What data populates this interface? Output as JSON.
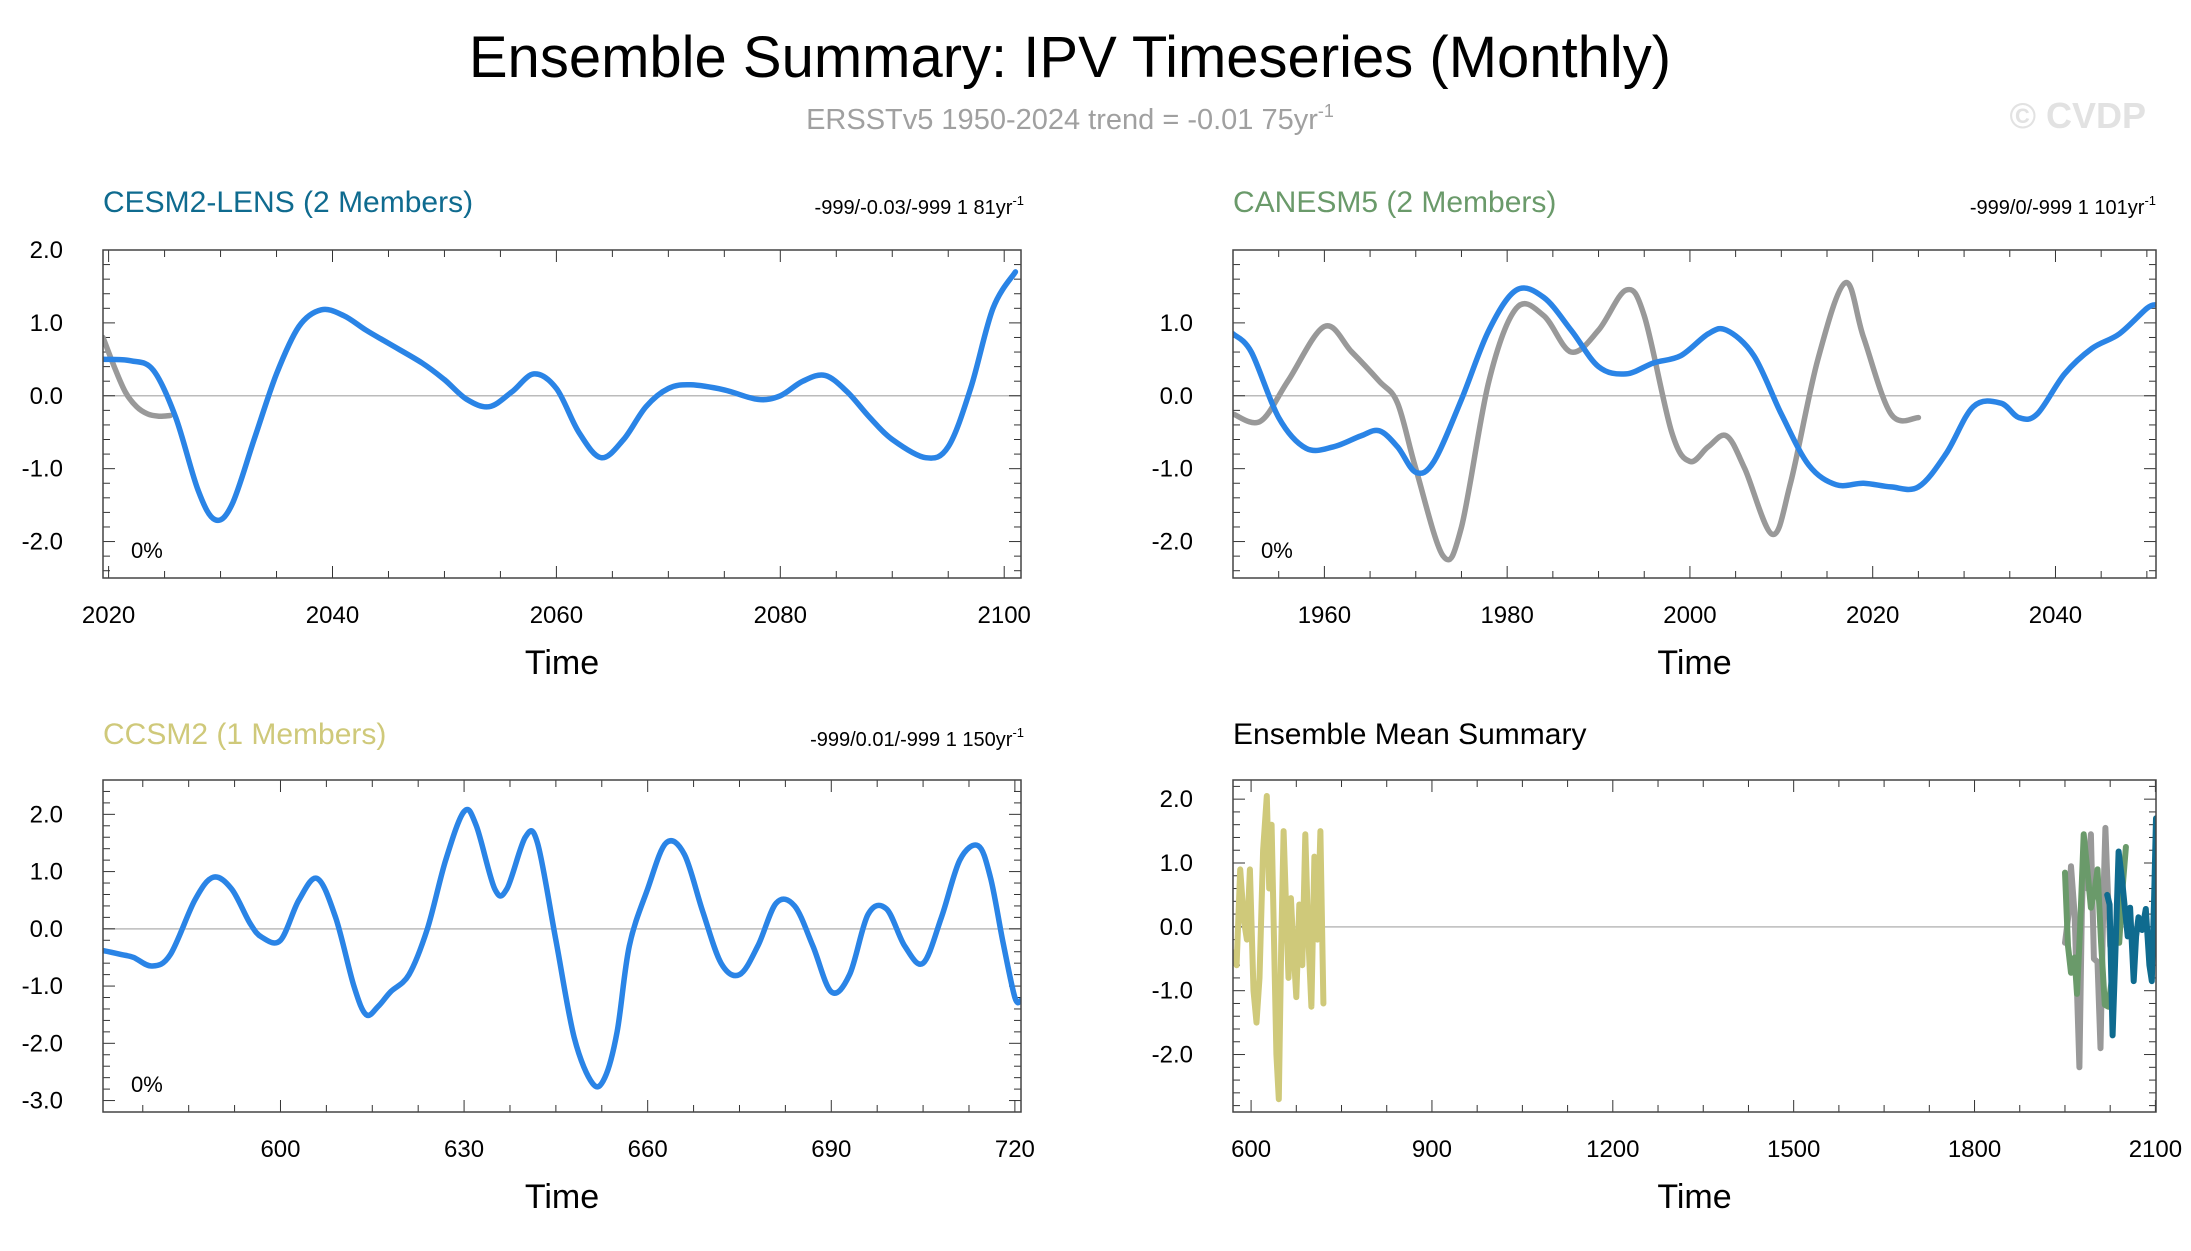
{
  "title": "Ensemble Summary: IPV Timeseries (Monthly)",
  "subtitle": "ERSSTv5 1950-2024 trend = -0.01 75yr",
  "subtitle_sup": "-1",
  "watermark": "© CVDP",
  "colors": {
    "obs": "#999999",
    "model": "#2a84e6",
    "cesm2": "#0f6b8f",
    "canesm5": "#6a9a6a",
    "ccsm2": "#cfc97a",
    "zero": "#bbbbbb"
  },
  "chart_data": [
    {
      "id": "cesm2",
      "type": "line",
      "title": "CESM2-LENS (2 Members)",
      "title_color": "#0f6b8f",
      "stats": "-999/-0.03/-999 1 81yr",
      "stats_sup": "-1",
      "pct_label": "0%",
      "xlabel": "Time",
      "xlim": [
        2019.5,
        2101.5
      ],
      "ylim": [
        -2.5,
        2.0
      ],
      "xticks": [
        2020,
        2040,
        2060,
        2080,
        2100
      ],
      "xtick_labels": [
        "2020",
        "2040",
        "2060",
        "2080",
        "2100"
      ],
      "yticks": [
        2.0,
        1.0,
        0.0,
        -1.0,
        -2.0
      ],
      "ytick_labels": [
        "2.0",
        "1.0",
        "0.0",
        "-1.0",
        "-2.0"
      ],
      "series": [
        {
          "name": "ERSSTv5",
          "role": "obs",
          "x": [
            2019.5,
            2020.5,
            2021.5,
            2022.5,
            2023.5,
            2024.5,
            2025.5
          ],
          "y": [
            0.8,
            0.4,
            0.05,
            -0.15,
            -0.25,
            -0.28,
            -0.27
          ]
        },
        {
          "name": "CESM2-LENS",
          "role": "model",
          "x": [
            2019.5,
            2022,
            2024,
            2026,
            2028,
            2029.5,
            2031,
            2033,
            2035,
            2037,
            2039,
            2041,
            2043,
            2045,
            2048,
            2050,
            2052,
            2054,
            2056,
            2058,
            2060,
            2062,
            2064,
            2066,
            2068,
            2070,
            2072,
            2075,
            2078,
            2080,
            2082,
            2084,
            2086,
            2088,
            2090,
            2093,
            2095,
            2097,
            2099,
            2101
          ],
          "y": [
            0.5,
            0.48,
            0.35,
            -0.3,
            -1.3,
            -1.7,
            -1.5,
            -0.6,
            0.3,
            0.95,
            1.18,
            1.1,
            0.9,
            0.72,
            0.45,
            0.22,
            -0.05,
            -0.15,
            0.05,
            0.3,
            0.1,
            -0.5,
            -0.85,
            -0.6,
            -0.15,
            0.1,
            0.15,
            0.08,
            -0.05,
            0.0,
            0.2,
            0.28,
            0.05,
            -0.3,
            -0.6,
            -0.85,
            -0.7,
            0.1,
            1.2,
            1.7
          ]
        }
      ]
    },
    {
      "id": "canesm5",
      "type": "line",
      "title": "CANESM5 (2 Members)",
      "title_color": "#6a9a6a",
      "stats": "-999/0/-999 1 101yr",
      "stats_sup": "-1",
      "pct_label": "0%",
      "xlabel": "Time",
      "xlim": [
        1950,
        2051
      ],
      "ylim": [
        -2.5,
        2.0
      ],
      "xticks": [
        1960,
        1980,
        2000,
        2020,
        2040
      ],
      "xtick_labels": [
        "1960",
        "1980",
        "2000",
        "2020",
        "2040"
      ],
      "yticks": [
        1.0,
        0.0,
        -1.0,
        -2.0
      ],
      "ytick_labels": [
        "1.0",
        "0.0",
        "-1.0",
        "-2.0"
      ],
      "series": [
        {
          "name": "ERSSTv5",
          "role": "obs",
          "x": [
            1950,
            1953,
            1956,
            1960,
            1963,
            1966,
            1968,
            1970,
            1973,
            1975,
            1978,
            1981,
            1984,
            1987,
            1990,
            1993,
            1995,
            1998,
            2000,
            2002,
            2004,
            2006,
            2009,
            2011,
            2014,
            2017,
            2019,
            2022,
            2025
          ],
          "y": [
            -0.25,
            -0.35,
            0.2,
            0.95,
            0.6,
            0.2,
            -0.1,
            -1.0,
            -2.2,
            -1.8,
            0.2,
            1.2,
            1.1,
            0.6,
            0.9,
            1.45,
            1.1,
            -0.5,
            -0.9,
            -0.7,
            -0.55,
            -1.0,
            -1.9,
            -1.2,
            0.5,
            1.55,
            0.8,
            -0.25,
            -0.3
          ]
        },
        {
          "name": "CANESM5",
          "role": "model",
          "x": [
            1950,
            1952,
            1955,
            1958,
            1961,
            1964,
            1966,
            1968,
            1970,
            1972,
            1975,
            1978,
            1981,
            1984,
            1987,
            1990,
            1993,
            1996,
            1999,
            2002,
            2004,
            2007,
            2010,
            2013,
            2016,
            2019,
            2022,
            2025,
            2028,
            2031,
            2034,
            2036,
            2038,
            2041,
            2044,
            2047,
            2050,
            2051
          ],
          "y": [
            0.85,
            0.6,
            -0.3,
            -0.72,
            -0.7,
            -0.55,
            -0.48,
            -0.7,
            -1.05,
            -0.9,
            -0.05,
            0.9,
            1.45,
            1.35,
            0.9,
            0.4,
            0.3,
            0.45,
            0.55,
            0.85,
            0.9,
            0.55,
            -0.25,
            -0.95,
            -1.22,
            -1.2,
            -1.25,
            -1.25,
            -0.8,
            -0.15,
            -0.1,
            -0.3,
            -0.25,
            0.3,
            0.65,
            0.85,
            1.2,
            1.25
          ]
        }
      ]
    },
    {
      "id": "ccsm2",
      "type": "line",
      "title": "CCSM2 (1 Members)",
      "title_color": "#cfc97a",
      "stats": "-999/0.01/-999 1 150yr",
      "stats_sup": "-1",
      "pct_label": "0%",
      "xlabel": "Time",
      "xlim": [
        571,
        721
      ],
      "ylim": [
        -3.2,
        2.6
      ],
      "xticks": [
        600,
        630,
        660,
        690,
        720
      ],
      "xtick_labels": [
        "600",
        "630",
        "660",
        "690",
        "720"
      ],
      "yticks": [
        2.0,
        1.0,
        0.0,
        -1.0,
        -2.0,
        -3.0
      ],
      "ytick_labels": [
        "2.0",
        "1.0",
        "0.0",
        "-1.0",
        "-2.0",
        "-3.0"
      ],
      "series": [
        {
          "name": "CCSM2",
          "role": "model",
          "x": [
            571,
            574,
            576,
            579,
            582,
            586,
            589,
            592,
            595,
            597,
            600,
            603,
            606,
            609,
            612,
            614,
            616,
            618,
            621,
            624,
            627,
            630,
            632,
            635,
            637,
            640,
            642,
            645,
            648,
            651,
            653,
            655,
            657,
            660,
            663,
            666,
            669,
            672,
            675,
            678,
            681,
            684,
            687,
            690,
            693,
            696,
            699,
            702,
            705,
            708,
            711,
            714,
            716,
            718,
            720,
            721
          ],
          "y": [
            -0.38,
            -0.45,
            -0.5,
            -0.65,
            -0.45,
            0.5,
            0.9,
            0.7,
            0.1,
            -0.15,
            -0.2,
            0.5,
            0.88,
            0.2,
            -1.0,
            -1.5,
            -1.35,
            -1.1,
            -0.8,
            0.0,
            1.2,
            2.05,
            1.8,
            0.7,
            0.7,
            1.6,
            1.5,
            -0.2,
            -1.9,
            -2.7,
            -2.6,
            -1.8,
            -0.3,
            0.7,
            1.5,
            1.3,
            0.3,
            -0.6,
            -0.8,
            -0.3,
            0.45,
            0.4,
            -0.3,
            -1.1,
            -0.8,
            0.25,
            0.35,
            -0.3,
            -0.6,
            0.2,
            1.2,
            1.45,
            0.9,
            -0.2,
            -1.2,
            -1.25
          ]
        }
      ]
    },
    {
      "id": "mean",
      "type": "line",
      "title": "Ensemble Mean Summary",
      "title_color": "#000000",
      "xlabel": "Time",
      "xlim": [
        570,
        2101
      ],
      "ylim": [
        -2.9,
        2.3
      ],
      "xticks": [
        600,
        900,
        1200,
        1500,
        1800,
        2100
      ],
      "xtick_labels": [
        "600",
        "900",
        "1200",
        "1500",
        "1800",
        "2100"
      ],
      "yticks": [
        2.0,
        1.0,
        0.0,
        -1.0,
        -2.0
      ],
      "ytick_labels": [
        "2.0",
        "1.0",
        "0.0",
        "-1.0",
        "-2.0"
      ],
      "series": [
        {
          "name": "CCSM2 mean",
          "role": "ccsm2",
          "x": [
            571,
            576,
            582,
            588,
            593,
            598,
            604,
            609,
            614,
            620,
            626,
            630,
            634,
            638,
            642,
            646,
            650,
            654,
            658,
            662,
            666,
            670,
            675,
            680,
            685,
            690,
            695,
            700,
            705,
            710,
            715,
            720
          ],
          "y": [
            -0.4,
            -0.6,
            0.9,
            0.1,
            -0.2,
            0.9,
            -1.0,
            -1.5,
            -0.8,
            1.2,
            2.05,
            0.6,
            1.6,
            -0.2,
            -2.0,
            -2.7,
            -0.3,
            1.5,
            0.3,
            -0.8,
            0.45,
            -0.3,
            -1.1,
            0.35,
            -0.6,
            1.45,
            -0.2,
            -1.25,
            1.1,
            -0.2,
            1.5,
            -1.2
          ]
        },
        {
          "name": "ERSSTv5",
          "role": "obs",
          "x": [
            1950,
            1956,
            1960,
            1966,
            1970,
            1974,
            1978,
            1981,
            1987,
            1993,
            1998,
            2004,
            2009,
            2014,
            2017,
            2020,
            2025
          ],
          "y": [
            -0.25,
            0.2,
            0.95,
            0.2,
            -1.0,
            -2.2,
            0.2,
            1.2,
            0.6,
            1.45,
            -0.5,
            -0.55,
            -1.9,
            0.5,
            1.55,
            0.8,
            -0.3
          ]
        },
        {
          "name": "CANESM5 mean",
          "role": "canesm5",
          "x": [
            1950,
            1955,
            1960,
            1966,
            1970,
            1975,
            1981,
            1987,
            1993,
            1999,
            2004,
            2010,
            2016,
            2022,
            2028,
            2034,
            2040,
            2046,
            2051
          ],
          "y": [
            0.85,
            -0.3,
            -0.72,
            -0.48,
            -1.05,
            -0.05,
            1.45,
            0.9,
            0.3,
            0.55,
            0.9,
            -0.25,
            -1.22,
            -1.25,
            -0.8,
            -0.1,
            -0.25,
            0.65,
            1.25
          ]
        },
        {
          "name": "CESM2-LENS mean",
          "role": "cesm2",
          "x": [
            2020,
            2024,
            2029,
            2033,
            2039,
            2045,
            2050,
            2054,
            2058,
            2064,
            2068,
            2072,
            2078,
            2084,
            2090,
            2094,
            2098,
            2101
          ],
          "y": [
            0.5,
            0.35,
            -1.7,
            -0.6,
            1.18,
            0.72,
            0.22,
            -0.15,
            0.3,
            -0.85,
            -0.15,
            0.15,
            -0.05,
            0.28,
            -0.6,
            -0.85,
            0.5,
            1.7
          ]
        }
      ]
    }
  ]
}
